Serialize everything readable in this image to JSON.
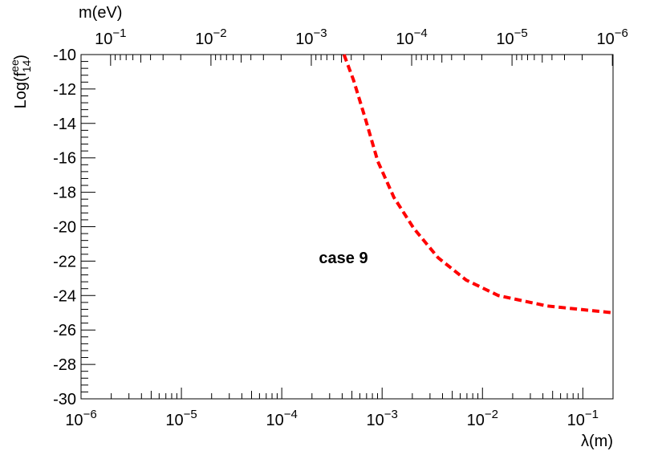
{
  "chart_data": {
    "type": "line",
    "xscale": "log",
    "x_label": "λ(m)",
    "y_label": "Log(f_14^ee)",
    "top_axis_label": "m(eV)",
    "xlim": [
      1e-06,
      0.2
    ],
    "xticks": [
      {
        "value": 1e-06,
        "label": "10^−6"
      },
      {
        "value": 1e-05,
        "label": "10^−5"
      },
      {
        "value": 0.0001,
        "label": "10^−4"
      },
      {
        "value": 0.001,
        "label": "10^−3"
      },
      {
        "value": 0.01,
        "label": "10^−2"
      },
      {
        "value": 0.1,
        "label": "10^−1"
      }
    ],
    "x2lim": [
      0.197,
      9.85e-07
    ],
    "x2ticks": [
      {
        "value": 0.1,
        "label": "10^−1"
      },
      {
        "value": 0.01,
        "label": "10^−2"
      },
      {
        "value": 0.001,
        "label": "10^−3"
      },
      {
        "value": 0.0001,
        "label": "10^−4"
      },
      {
        "value": 1e-05,
        "label": "10^−5"
      },
      {
        "value": 1e-06,
        "label": "10^−6"
      }
    ],
    "ylim": [
      -30,
      -10
    ],
    "yticks": [
      -10,
      -12,
      -14,
      -16,
      -18,
      -20,
      -22,
      -24,
      -26,
      -28,
      -30
    ],
    "series": [
      {
        "color": "#ff0000",
        "dashed": true,
        "x": [
          0.000417,
          0.00052,
          0.000687,
          0.000906,
          0.00131,
          0.00207,
          0.00361,
          0.00689,
          0.0144,
          0.0436,
          0.2
        ],
        "values": [
          -10,
          -11.5,
          -13.8,
          -16.2,
          -18.3,
          -20.1,
          -21.8,
          -23.1,
          -24.0,
          -24.6,
          -25.0
        ]
      }
    ],
    "annotations": [
      {
        "text": "case 9"
      }
    ]
  }
}
